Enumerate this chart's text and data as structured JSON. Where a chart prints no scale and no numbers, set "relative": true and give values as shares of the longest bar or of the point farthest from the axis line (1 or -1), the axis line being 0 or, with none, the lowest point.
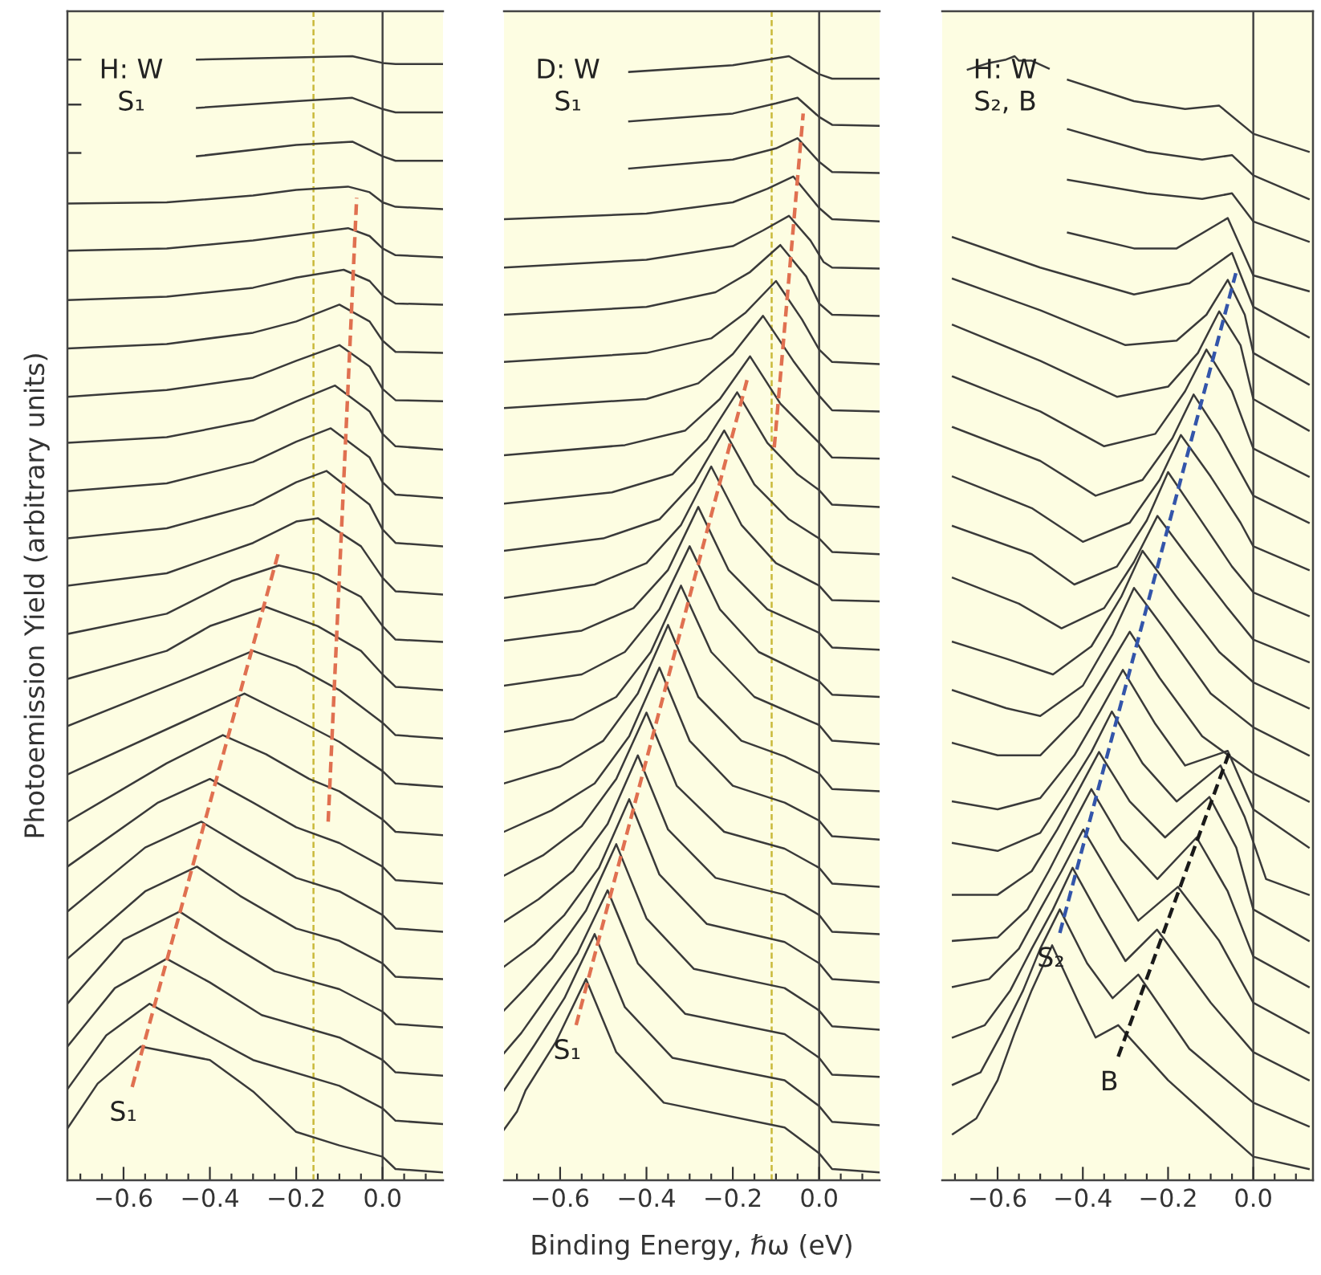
{
  "chart_data": [
    {
      "type": "line",
      "relative": true,
      "ylabel": "Photoemission Yield (arbitrary units)",
      "xlim": [
        -0.73,
        0.14
      ],
      "xticks": [
        {
          "value": -0.7,
          "label": null
        },
        {
          "value": -0.65,
          "label": null
        },
        {
          "value": -0.6,
          "label": "−0.6"
        },
        {
          "value": -0.55,
          "label": null
        },
        {
          "value": -0.5,
          "label": null
        },
        {
          "value": -0.45,
          "label": null
        },
        {
          "value": -0.4,
          "label": "−0.4"
        },
        {
          "value": -0.35,
          "label": null
        },
        {
          "value": -0.3,
          "label": null
        },
        {
          "value": -0.25,
          "label": null
        },
        {
          "value": -0.2,
          "label": "−0.2"
        },
        {
          "value": -0.15,
          "label": null
        },
        {
          "value": -0.1,
          "label": null
        },
        {
          "value": -0.05,
          "label": null
        },
        {
          "value": 0,
          "label": "0.0"
        },
        {
          "value": 0.05,
          "label": null
        },
        {
          "value": 0.1,
          "label": null
        }
      ],
      "annotations": [
        "H: W\nS₁",
        "S₁"
      ],
      "ref_lines": [
        {
          "axis": "x",
          "value": -0.16,
          "color": "#c9b93a",
          "line_style": "dashed"
        },
        {
          "axis": "x",
          "value": 0,
          "color": "#444444",
          "line_style": "solid"
        }
      ],
      "series": [
        {
          "color": "#3a3a3a",
          "x": [
            -0.73,
            -0.7,
            -0.6,
            -0.43,
            -0.2,
            -0.07,
            0,
            0.03,
            0.14
          ],
          "values": [
            0.997,
            0.997,
            null,
            0.997,
            0.999,
            1.0,
            0.994,
            0.993,
            0.993
          ]
        },
        {
          "color": "#3a3a3a",
          "x": [
            -0.73,
            -0.7,
            -0.6,
            -0.43,
            -0.2,
            -0.07,
            0,
            0.03,
            0.14
          ],
          "values": [
            0.957,
            0.957,
            null,
            0.954,
            0.96,
            0.963,
            0.953,
            0.95,
            0.95
          ]
        },
        {
          "color": "#3a3a3a",
          "x": [
            -0.73,
            -0.7,
            -0.6,
            -0.43,
            -0.2,
            -0.07,
            0,
            0.03,
            0.14
          ],
          "values": [
            0.914,
            0.914,
            null,
            0.911,
            0.921,
            0.924,
            0.911,
            0.907,
            0.907
          ]
        },
        {
          "color": "#3a3a3a",
          "x": [
            -0.73,
            -0.5,
            -0.3,
            -0.2,
            -0.08,
            -0.03,
            0,
            0.03,
            0.14
          ],
          "values": [
            0.869,
            0.87,
            0.876,
            0.881,
            0.884,
            0.879,
            0.87,
            0.866,
            0.864
          ]
        },
        {
          "color": "#3a3a3a",
          "x": [
            -0.73,
            -0.5,
            -0.3,
            -0.2,
            -0.08,
            -0.03,
            0,
            0.03,
            0.14
          ],
          "values": [
            0.827,
            0.829,
            0.836,
            0.841,
            0.847,
            0.84,
            0.829,
            0.823,
            0.821
          ]
        },
        {
          "color": "#3a3a3a",
          "x": [
            -0.73,
            -0.5,
            -0.3,
            -0.2,
            -0.09,
            -0.03,
            0,
            0.03,
            0.14
          ],
          "values": [
            0.783,
            0.786,
            0.794,
            0.803,
            0.81,
            0.8,
            0.787,
            0.78,
            0.779
          ]
        },
        {
          "color": "#3a3a3a",
          "x": [
            -0.73,
            -0.5,
            -0.3,
            -0.2,
            -0.1,
            -0.03,
            0,
            0.03,
            0.14
          ],
          "values": [
            0.74,
            0.744,
            0.754,
            0.764,
            0.779,
            0.764,
            0.747,
            0.737,
            0.736
          ]
        },
        {
          "color": "#3a3a3a",
          "x": [
            -0.73,
            -0.5,
            -0.3,
            -0.2,
            -0.1,
            -0.03,
            0,
            0.03,
            0.14
          ],
          "values": [
            0.697,
            0.703,
            0.714,
            0.729,
            0.743,
            0.724,
            0.704,
            0.694,
            0.693
          ]
        },
        {
          "color": "#3a3a3a",
          "x": [
            -0.73,
            -0.5,
            -0.3,
            -0.2,
            -0.11,
            -0.03,
            0,
            0.03,
            0.14
          ],
          "values": [
            0.656,
            0.661,
            0.676,
            0.693,
            0.707,
            0.684,
            0.664,
            0.653,
            0.65
          ]
        },
        {
          "color": "#3a3a3a",
          "x": [
            -0.73,
            -0.5,
            -0.3,
            -0.2,
            -0.12,
            -0.03,
            0,
            0.03,
            0.14
          ],
          "values": [
            0.613,
            0.62,
            0.639,
            0.657,
            0.669,
            0.643,
            0.621,
            0.61,
            0.607
          ]
        },
        {
          "color": "#3a3a3a",
          "x": [
            -0.73,
            -0.5,
            -0.3,
            -0.2,
            -0.13,
            -0.03,
            0,
            0.03,
            0.14
          ],
          "values": [
            0.571,
            0.58,
            0.601,
            0.621,
            0.631,
            0.601,
            0.579,
            0.567,
            0.564
          ]
        },
        {
          "color": "#3a3a3a",
          "x": [
            -0.73,
            -0.5,
            -0.3,
            -0.2,
            -0.15,
            -0.05,
            0,
            0.03,
            0.14
          ],
          "values": [
            0.529,
            0.54,
            0.567,
            0.586,
            0.589,
            0.564,
            0.536,
            0.524,
            0.521
          ]
        },
        {
          "color": "#3a3a3a",
          "x": [
            -0.73,
            -0.5,
            -0.35,
            -0.24,
            -0.15,
            -0.05,
            0,
            0.03,
            0.14
          ],
          "values": [
            0.486,
            0.504,
            0.533,
            0.547,
            0.539,
            0.519,
            0.493,
            0.481,
            0.479
          ]
        },
        {
          "color": "#3a3a3a",
          "x": [
            -0.73,
            -0.5,
            -0.4,
            -0.27,
            -0.15,
            -0.05,
            0,
            0.03,
            0.14
          ],
          "values": [
            0.446,
            0.471,
            0.493,
            0.51,
            0.493,
            0.471,
            0.45,
            0.439,
            0.436
          ]
        },
        {
          "color": "#3a3a3a",
          "x": [
            -0.73,
            -0.45,
            -0.3,
            -0.2,
            -0.1,
            0,
            0.03,
            0.14
          ],
          "values": [
            0.404,
            0.447,
            0.471,
            0.457,
            0.436,
            0.407,
            0.396,
            0.393
          ]
        },
        {
          "color": "#3a3a3a",
          "x": [
            -0.73,
            -0.45,
            -0.32,
            -0.2,
            -0.1,
            0,
            0.03,
            0.14
          ],
          "values": [
            0.361,
            0.41,
            0.433,
            0.41,
            0.39,
            0.364,
            0.353,
            0.35
          ]
        },
        {
          "color": "#3a3a3a",
          "x": [
            -0.73,
            -0.5,
            -0.37,
            -0.27,
            -0.17,
            -0.1,
            0,
            0.03,
            0.14
          ],
          "values": [
            0.319,
            0.371,
            0.396,
            0.379,
            0.357,
            0.346,
            0.321,
            0.31,
            0.307
          ]
        },
        {
          "color": "#3a3a3a",
          "x": [
            -0.73,
            -0.52,
            -0.4,
            -0.3,
            -0.2,
            -0.1,
            0,
            0.03,
            0.14
          ],
          "values": [
            0.279,
            0.336,
            0.357,
            0.336,
            0.314,
            0.3,
            0.279,
            0.267,
            0.264
          ]
        },
        {
          "color": "#3a3a3a",
          "x": [
            -0.73,
            -0.55,
            -0.42,
            -0.32,
            -0.2,
            -0.1,
            0,
            0.03,
            0.14
          ],
          "values": [
            0.239,
            0.296,
            0.319,
            0.296,
            0.269,
            0.257,
            0.236,
            0.224,
            0.221
          ]
        },
        {
          "color": "#3a3a3a",
          "x": [
            -0.73,
            -0.55,
            -0.43,
            -0.33,
            -0.2,
            -0.1,
            0,
            0.03,
            0.14
          ],
          "values": [
            0.197,
            0.257,
            0.279,
            0.253,
            0.224,
            0.213,
            0.193,
            0.181,
            0.179
          ]
        },
        {
          "color": "#3a3a3a",
          "x": [
            -0.73,
            -0.6,
            -0.47,
            -0.37,
            -0.25,
            -0.1,
            0,
            0.03,
            0.14
          ],
          "values": [
            0.157,
            0.214,
            0.239,
            0.214,
            0.186,
            0.17,
            0.15,
            0.139,
            0.136
          ]
        },
        {
          "color": "#3a3a3a",
          "x": [
            -0.73,
            -0.62,
            -0.5,
            -0.4,
            -0.28,
            -0.1,
            0,
            0.03,
            0.14
          ],
          "values": [
            0.119,
            0.171,
            0.197,
            0.176,
            0.147,
            0.127,
            0.107,
            0.096,
            0.093
          ]
        },
        {
          "color": "#3a3a3a",
          "x": [
            -0.73,
            -0.64,
            -0.54,
            -0.44,
            -0.3,
            -0.1,
            0,
            0.03,
            0.14
          ],
          "values": [
            0.081,
            0.129,
            0.157,
            0.136,
            0.107,
            0.084,
            0.064,
            0.053,
            0.05
          ]
        },
        {
          "color": "#3a3a3a",
          "x": [
            -0.73,
            -0.66,
            -0.56,
            -0.4,
            -0.3,
            -0.2,
            -0.1,
            0,
            0.03,
            0.14
          ],
          "values": [
            0.046,
            0.086,
            0.119,
            0.107,
            0.079,
            0.043,
            0.031,
            0.021,
            0.01,
            0.007
          ]
        },
        {
          "color": "#e07050",
          "line_style": "dashed",
          "x": [
            -0.58,
            -0.24
          ],
          "values": [
            0.083,
            0.56
          ]
        },
        {
          "color": "#e07050",
          "line_style": "dashed",
          "x": [
            -0.126,
            -0.06
          ],
          "values": [
            0.319,
            0.874
          ]
        }
      ]
    },
    {
      "type": "line",
      "relative": true,
      "xlabel": "Binding Energy, ℏω (eV)",
      "xlim": [
        -0.73,
        0.14
      ],
      "xticks": [
        {
          "value": -0.7,
          "label": null
        },
        {
          "value": -0.65,
          "label": null
        },
        {
          "value": -0.6,
          "label": "−0.6"
        },
        {
          "value": -0.55,
          "label": null
        },
        {
          "value": -0.5,
          "label": null
        },
        {
          "value": -0.45,
          "label": null
        },
        {
          "value": -0.4,
          "label": "−0.4"
        },
        {
          "value": -0.35,
          "label": null
        },
        {
          "value": -0.3,
          "label": null
        },
        {
          "value": -0.25,
          "label": null
        },
        {
          "value": -0.2,
          "label": "−0.2"
        },
        {
          "value": -0.15,
          "label": null
        },
        {
          "value": -0.1,
          "label": null
        },
        {
          "value": -0.05,
          "label": null
        },
        {
          "value": 0,
          "label": "0.0"
        },
        {
          "value": 0.05,
          "label": null
        },
        {
          "value": 0.1,
          "label": null
        }
      ],
      "annotations": [
        "D: W\nS₁",
        "S₁"
      ],
      "ref_lines": [
        {
          "axis": "x",
          "value": -0.11,
          "color": "#c9b93a",
          "line_style": "dashed"
        },
        {
          "axis": "x",
          "value": 0,
          "color": "#444444",
          "line_style": "solid"
        }
      ],
      "series": [
        {
          "color": "#3a3a3a",
          "x": [
            -0.44,
            -0.2,
            -0.07,
            0,
            0.03,
            0.14
          ],
          "values": [
            0.986,
            0.992,
            1.0,
            0.984,
            0.98,
            0.98
          ]
        },
        {
          "color": "#3a3a3a",
          "x": [
            -0.44,
            -0.2,
            -0.1,
            -0.05,
            0,
            0.03,
            0.14
          ],
          "values": [
            0.942,
            0.949,
            0.958,
            0.963,
            0.946,
            0.939,
            0.938
          ]
        },
        {
          "color": "#3a3a3a",
          "x": [
            -0.44,
            -0.2,
            -0.1,
            -0.05,
            0,
            0.03,
            0.14
          ],
          "values": [
            0.9,
            0.908,
            0.918,
            0.927,
            0.906,
            0.897,
            0.896
          ]
        },
        {
          "color": "#3a3a3a",
          "x": [
            -0.73,
            -0.4,
            -0.2,
            -0.12,
            -0.06,
            0,
            0.03,
            0.14
          ],
          "values": [
            0.855,
            0.86,
            0.87,
            0.882,
            0.893,
            0.865,
            0.855,
            0.853
          ]
        },
        {
          "color": "#3a3a3a",
          "x": [
            -0.73,
            -0.4,
            -0.2,
            -0.13,
            -0.07,
            -0.02,
            0.01,
            0.03,
            0.14
          ],
          "values": [
            0.812,
            0.819,
            0.831,
            0.845,
            0.858,
            0.836,
            0.817,
            0.812,
            0.811
          ]
        },
        {
          "color": "#3a3a3a",
          "x": [
            -0.73,
            -0.4,
            -0.24,
            -0.16,
            -0.09,
            -0.03,
            0,
            0.03,
            0.14
          ],
          "values": [
            0.77,
            0.777,
            0.79,
            0.808,
            0.832,
            0.804,
            0.78,
            0.77,
            0.769
          ]
        },
        {
          "color": "#3a3a3a",
          "x": [
            -0.73,
            -0.4,
            -0.25,
            -0.17,
            -0.1,
            -0.04,
            0,
            0.03,
            0.14
          ],
          "values": [
            0.728,
            0.736,
            0.749,
            0.772,
            0.8,
            0.766,
            0.739,
            0.728,
            0.726
          ]
        },
        {
          "color": "#3a3a3a",
          "x": [
            -0.73,
            -0.4,
            -0.28,
            -0.2,
            -0.13,
            -0.06,
            0,
            0.03,
            0.14
          ],
          "values": [
            0.687,
            0.695,
            0.709,
            0.735,
            0.769,
            0.729,
            0.698,
            0.685,
            0.684
          ]
        },
        {
          "color": "#3a3a3a",
          "x": [
            -0.73,
            -0.45,
            -0.31,
            -0.23,
            -0.16,
            -0.09,
            0,
            0.03,
            0.14
          ],
          "values": [
            0.645,
            0.654,
            0.667,
            0.695,
            0.733,
            0.691,
            0.656,
            0.643,
            0.642
          ]
        },
        {
          "color": "#3a3a3a",
          "x": [
            -0.73,
            -0.48,
            -0.34,
            -0.26,
            -0.19,
            -0.12,
            -0.05,
            0,
            0.03,
            0.14
          ],
          "values": [
            0.602,
            0.612,
            0.628,
            0.659,
            0.701,
            0.656,
            0.628,
            0.614,
            0.601,
            0.599
          ]
        },
        {
          "color": "#3a3a3a",
          "x": [
            -0.73,
            -0.5,
            -0.37,
            -0.29,
            -0.22,
            -0.15,
            -0.07,
            0,
            0.03,
            0.14
          ],
          "values": [
            0.56,
            0.571,
            0.588,
            0.621,
            0.667,
            0.619,
            0.588,
            0.571,
            0.559,
            0.557
          ]
        },
        {
          "color": "#3a3a3a",
          "x": [
            -0.73,
            -0.52,
            -0.4,
            -0.32,
            -0.25,
            -0.18,
            -0.1,
            0,
            0.03,
            0.14
          ],
          "values": [
            0.518,
            0.53,
            0.549,
            0.583,
            0.635,
            0.583,
            0.549,
            0.529,
            0.516,
            0.515
          ]
        },
        {
          "color": "#3a3a3a",
          "x": [
            -0.73,
            -0.55,
            -0.43,
            -0.35,
            -0.28,
            -0.21,
            -0.12,
            0,
            0.03,
            0.14
          ],
          "values": [
            0.48,
            0.489,
            0.509,
            0.543,
            0.599,
            0.543,
            0.508,
            0.487,
            0.474,
            0.472
          ]
        },
        {
          "color": "#3a3a3a",
          "x": [
            -0.73,
            -0.55,
            -0.45,
            -0.37,
            -0.3,
            -0.23,
            -0.14,
            0,
            0.03,
            0.14
          ],
          "values": [
            0.44,
            0.45,
            0.47,
            0.508,
            0.564,
            0.508,
            0.47,
            0.444,
            0.432,
            0.43
          ]
        },
        {
          "color": "#3a3a3a",
          "x": [
            -0.73,
            -0.57,
            -0.47,
            -0.39,
            -0.32,
            -0.25,
            -0.15,
            0,
            0.03,
            0.14
          ],
          "values": [
            0.399,
            0.41,
            0.43,
            0.47,
            0.529,
            0.47,
            0.43,
            0.405,
            0.391,
            0.388
          ]
        },
        {
          "color": "#3a3a3a",
          "x": [
            -0.73,
            -0.6,
            -0.5,
            -0.42,
            -0.35,
            -0.28,
            -0.18,
            -0.08,
            0,
            0.03,
            0.14
          ],
          "values": [
            0.353,
            0.368,
            0.391,
            0.433,
            0.494,
            0.43,
            0.391,
            0.377,
            0.362,
            0.348,
            0.346
          ]
        },
        {
          "color": "#3a3a3a",
          "x": [
            -0.73,
            -0.62,
            -0.52,
            -0.44,
            -0.37,
            -0.3,
            -0.2,
            -0.08,
            0,
            0.03,
            0.14
          ],
          "values": [
            0.31,
            0.329,
            0.353,
            0.395,
            0.456,
            0.391,
            0.351,
            0.336,
            0.32,
            0.306,
            0.303
          ]
        },
        {
          "color": "#3a3a3a",
          "x": [
            -0.73,
            -0.64,
            -0.55,
            -0.47,
            -0.4,
            -0.33,
            -0.22,
            -0.08,
            0,
            0.03,
            0.14
          ],
          "values": [
            0.271,
            0.289,
            0.315,
            0.357,
            0.416,
            0.351,
            0.31,
            0.295,
            0.278,
            0.264,
            0.261
          ]
        },
        {
          "color": "#3a3a3a",
          "x": [
            -0.73,
            -0.65,
            -0.57,
            -0.49,
            -0.42,
            -0.35,
            -0.24,
            -0.08,
            0,
            0.03,
            0.14
          ],
          "values": [
            0.23,
            0.25,
            0.275,
            0.317,
            0.378,
            0.312,
            0.269,
            0.254,
            0.236,
            0.221,
            0.219
          ]
        },
        {
          "color": "#3a3a3a",
          "x": [
            -0.73,
            -0.66,
            -0.59,
            -0.51,
            -0.44,
            -0.37,
            -0.26,
            -0.08,
            0,
            0.03,
            0.14
          ],
          "values": [
            0.19,
            0.21,
            0.236,
            0.278,
            0.339,
            0.272,
            0.228,
            0.212,
            0.193,
            0.179,
            0.176
          ]
        },
        {
          "color": "#3a3a3a",
          "x": [
            -0.73,
            -0.68,
            -0.62,
            -0.54,
            -0.47,
            -0.4,
            -0.29,
            -0.08,
            0,
            0.03,
            0.14
          ],
          "values": [
            0.151,
            0.171,
            0.197,
            0.24,
            0.299,
            0.233,
            0.188,
            0.171,
            0.151,
            0.137,
            0.134
          ]
        },
        {
          "color": "#3a3a3a",
          "x": [
            -0.73,
            -0.69,
            -0.64,
            -0.56,
            -0.49,
            -0.42,
            -0.31,
            -0.08,
            0,
            0.03,
            0.14
          ],
          "values": [
            0.113,
            0.131,
            0.158,
            0.202,
            0.258,
            0.193,
            0.148,
            0.13,
            0.109,
            0.094,
            0.092
          ]
        },
        {
          "color": "#3a3a3a",
          "x": [
            -0.73,
            -0.7,
            -0.66,
            -0.59,
            -0.52,
            -0.45,
            -0.34,
            -0.08,
            0,
            0.03,
            0.14
          ],
          "values": [
            0.08,
            0.097,
            0.12,
            0.162,
            0.219,
            0.154,
            0.109,
            0.089,
            0.066,
            0.052,
            0.049
          ]
        },
        {
          "color": "#3a3a3a",
          "x": [
            -0.73,
            -0.7,
            -0.68,
            -0.61,
            -0.54,
            -0.47,
            -0.36,
            -0.08,
            0,
            0.03,
            0.14
          ],
          "values": [
            0.045,
            0.061,
            0.08,
            0.123,
            0.179,
            0.114,
            0.069,
            0.047,
            0.024,
            0.01,
            0.007
          ]
        },
        {
          "color": "#e07050",
          "line_style": "dashed",
          "x": [
            -0.563,
            -0.167
          ],
          "values": [
            0.138,
            0.712
          ]
        },
        {
          "color": "#e07050",
          "line_style": "dashed",
          "x": [
            -0.104,
            -0.037
          ],
          "values": [
            0.652,
            0.949
          ]
        }
      ]
    },
    {
      "type": "line",
      "relative": true,
      "xlim": [
        -0.73,
        0.14
      ],
      "xticks": [
        {
          "value": -0.7,
          "label": null
        },
        {
          "value": -0.65,
          "label": null
        },
        {
          "value": -0.6,
          "label": "−0.6"
        },
        {
          "value": -0.55,
          "label": null
        },
        {
          "value": -0.5,
          "label": null
        },
        {
          "value": -0.45,
          "label": null
        },
        {
          "value": -0.4,
          "label": "−0.4"
        },
        {
          "value": -0.35,
          "label": null
        },
        {
          "value": -0.3,
          "label": null
        },
        {
          "value": -0.25,
          "label": null
        },
        {
          "value": -0.2,
          "label": "−0.2"
        },
        {
          "value": -0.15,
          "label": null
        },
        {
          "value": -0.1,
          "label": null
        },
        {
          "value": -0.05,
          "label": null
        },
        {
          "value": 0,
          "label": "0.0"
        },
        {
          "value": 0.05,
          "label": null
        },
        {
          "value": 0.1,
          "label": null
        }
      ],
      "annotations": [
        "H: W\nS₂, B",
        "S₂",
        "B"
      ],
      "ref_lines": [
        {
          "axis": "x",
          "value": 0,
          "color": "#444444",
          "line_style": "solid"
        }
      ],
      "series": [
        {
          "color": "#3a3a3a",
          "x": [
            -0.67,
            -0.62,
            -0.58,
            -0.56,
            -0.55,
            -0.52,
            -0.48
          ],
          "values": [
            0.988,
            0.994,
            0.997,
            1.0,
            0.996,
            0.996,
            0.989
          ]
        },
        {
          "color": "#3a3a3a",
          "x": [
            -0.435,
            -0.28,
            -0.16,
            -0.08,
            0,
            0.13
          ],
          "values": [
            0.979,
            0.96,
            0.953,
            0.956,
            0.931,
            0.915
          ]
        },
        {
          "color": "#3a3a3a",
          "x": [
            -0.435,
            -0.25,
            -0.12,
            -0.05,
            0,
            0.13
          ],
          "values": [
            0.935,
            0.915,
            0.908,
            0.912,
            0.894,
            0.873
          ]
        },
        {
          "color": "#3a3a3a",
          "x": [
            -0.435,
            -0.25,
            -0.12,
            -0.05,
            0,
            0.13
          ],
          "values": [
            0.89,
            0.878,
            0.873,
            0.878,
            0.853,
            0.835
          ]
        },
        {
          "color": "#3a3a3a",
          "x": [
            -0.435,
            -0.28,
            -0.18,
            -0.06,
            0,
            0.13
          ],
          "values": [
            0.843,
            0.829,
            0.829,
            0.856,
            0.805,
            0.791
          ]
        },
        {
          "color": "#3a3a3a",
          "x": [
            -0.705,
            -0.5,
            -0.28,
            -0.15,
            -0.05,
            0,
            0.13
          ],
          "values": [
            0.839,
            0.812,
            0.788,
            0.798,
            0.825,
            0.777,
            0.75
          ]
        },
        {
          "color": "#3a3a3a",
          "x": [
            -0.705,
            -0.5,
            -0.3,
            -0.18,
            -0.11,
            -0.06,
            -0.02,
            0,
            0.13
          ],
          "values": [
            0.802,
            0.774,
            0.743,
            0.747,
            0.77,
            0.801,
            0.77,
            0.736,
            0.708
          ]
        },
        {
          "color": "#3a3a3a",
          "x": [
            -0.705,
            -0.5,
            -0.32,
            -0.2,
            -0.13,
            -0.08,
            -0.03,
            0,
            0.13
          ],
          "values": [
            0.761,
            0.729,
            0.697,
            0.706,
            0.736,
            0.773,
            0.743,
            0.695,
            0.667
          ]
        },
        {
          "color": "#3a3a3a",
          "x": [
            -0.705,
            -0.5,
            -0.35,
            -0.23,
            -0.16,
            -0.11,
            -0.05,
            0,
            0.13
          ],
          "values": [
            0.715,
            0.684,
            0.653,
            0.664,
            0.702,
            0.739,
            0.702,
            0.651,
            0.626
          ]
        },
        {
          "color": "#3a3a3a",
          "x": [
            -0.705,
            -0.5,
            -0.37,
            -0.26,
            -0.19,
            -0.14,
            -0.08,
            0,
            0.13
          ],
          "values": [
            0.67,
            0.64,
            0.609,
            0.623,
            0.66,
            0.699,
            0.664,
            0.609,
            0.585
          ]
        },
        {
          "color": "#3a3a3a",
          "x": [
            -0.705,
            -0.52,
            -0.4,
            -0.29,
            -0.22,
            -0.17,
            -0.1,
            -0.03,
            0,
            0.13
          ],
          "values": [
            0.626,
            0.598,
            0.568,
            0.585,
            0.623,
            0.663,
            0.626,
            0.585,
            0.564,
            0.543
          ]
        },
        {
          "color": "#3a3a3a",
          "x": [
            -0.705,
            -0.52,
            -0.42,
            -0.32,
            -0.25,
            -0.2,
            -0.13,
            -0.05,
            0,
            0.13
          ],
          "values": [
            0.582,
            0.557,
            0.53,
            0.546,
            0.587,
            0.63,
            0.591,
            0.546,
            0.523,
            0.502
          ]
        },
        {
          "color": "#3a3a3a",
          "x": [
            -0.705,
            -0.55,
            -0.45,
            -0.35,
            -0.28,
            -0.225,
            -0.15,
            -0.06,
            0,
            0.13
          ],
          "values": [
            0.536,
            0.513,
            0.491,
            0.509,
            0.55,
            0.591,
            0.553,
            0.509,
            0.481,
            0.461
          ]
        },
        {
          "color": "#3a3a3a",
          "x": [
            -0.705,
            -0.58,
            -0.47,
            -0.38,
            -0.31,
            -0.26,
            -0.18,
            -0.08,
            0,
            0.13
          ],
          "values": [
            0.479,
            0.464,
            0.45,
            0.475,
            0.519,
            0.56,
            0.519,
            0.47,
            0.443,
            0.42
          ]
        },
        {
          "color": "#3a3a3a",
          "x": [
            -0.705,
            -0.58,
            -0.5,
            -0.4,
            -0.33,
            -0.28,
            -0.2,
            -0.1,
            0,
            0.13
          ],
          "values": [
            0.436,
            0.42,
            0.413,
            0.44,
            0.486,
            0.527,
            0.486,
            0.433,
            0.403,
            0.378
          ]
        },
        {
          "color": "#3a3a3a",
          "x": [
            -0.705,
            -0.6,
            -0.5,
            -0.41,
            -0.35,
            -0.29,
            -0.22,
            -0.12,
            0,
            0.13
          ],
          "values": [
            0.389,
            0.378,
            0.378,
            0.413,
            0.45,
            0.488,
            0.447,
            0.395,
            0.362,
            0.337
          ]
        },
        {
          "color": "#3a3a3a",
          "x": [
            -0.705,
            -0.6,
            -0.5,
            -0.42,
            -0.36,
            -0.306,
            -0.23,
            -0.16,
            -0.06,
            0,
            0.13
          ],
          "values": [
            0.337,
            0.33,
            0.34,
            0.378,
            0.417,
            0.454,
            0.406,
            0.369,
            0.382,
            0.33,
            0.296
          ]
        },
        {
          "color": "#3a3a3a",
          "x": [
            -0.705,
            -0.6,
            -0.5,
            -0.44,
            -0.38,
            -0.332,
            -0.26,
            -0.18,
            -0.077,
            -0.02,
            0.03,
            0.13
          ],
          "values": [
            0.3,
            0.293,
            0.309,
            0.344,
            0.381,
            0.417,
            0.371,
            0.337,
            0.369,
            0.323,
            0.268,
            0.254
          ]
        },
        {
          "color": "#3a3a3a",
          "x": [
            -0.705,
            -0.6,
            -0.52,
            -0.46,
            -0.41,
            -0.362,
            -0.29,
            -0.207,
            -0.103,
            -0.04,
            0,
            0.13
          ],
          "values": [
            0.254,
            0.254,
            0.275,
            0.312,
            0.347,
            0.381,
            0.337,
            0.305,
            0.341,
            0.296,
            0.241,
            0.213
          ]
        },
        {
          "color": "#3a3a3a",
          "x": [
            -0.705,
            -0.6,
            -0.53,
            -0.48,
            -0.43,
            -0.38,
            -0.31,
            -0.225,
            -0.133,
            -0.06,
            0,
            0.13
          ],
          "values": [
            0.213,
            0.216,
            0.241,
            0.275,
            0.312,
            0.348,
            0.303,
            0.268,
            0.305,
            0.257,
            0.199,
            0.172
          ]
        },
        {
          "color": "#3a3a3a",
          "x": [
            -0.705,
            -0.62,
            -0.55,
            -0.5,
            -0.45,
            -0.399,
            -0.33,
            -0.27,
            -0.177,
            -0.08,
            0,
            0.13
          ],
          "values": [
            0.172,
            0.179,
            0.206,
            0.241,
            0.275,
            0.312,
            0.268,
            0.231,
            0.261,
            0.213,
            0.158,
            0.131
          ]
        },
        {
          "color": "#3a3a3a",
          "x": [
            -0.705,
            -0.63,
            -0.57,
            -0.52,
            -0.47,
            -0.424,
            -0.36,
            -0.3,
            -0.226,
            -0.1,
            0,
            0.13
          ],
          "values": [
            0.127,
            0.138,
            0.169,
            0.206,
            0.241,
            0.278,
            0.234,
            0.195,
            0.223,
            0.158,
            0.114,
            0.089
          ]
        },
        {
          "color": "#3a3a3a",
          "x": [
            -0.705,
            -0.64,
            -0.59,
            -0.54,
            -0.5,
            -0.454,
            -0.39,
            -0.33,
            -0.27,
            -0.15,
            0,
            0.13
          ],
          "values": [
            0.085,
            0.096,
            0.131,
            0.169,
            0.206,
            0.241,
            0.193,
            0.162,
            0.183,
            0.117,
            0.069,
            0.048
          ]
        },
        {
          "color": "#3a3a3a",
          "x": [
            -0.705,
            -0.65,
            -0.6,
            -0.56,
            -0.52,
            -0.472,
            -0.41,
            -0.37,
            -0.317,
            -0.2,
            -0.08,
            0,
            0.13
          ],
          "values": [
            0.041,
            0.055,
            0.089,
            0.131,
            0.169,
            0.209,
            0.158,
            0.127,
            0.138,
            0.089,
            0.048,
            0.021,
            0.01
          ]
        },
        {
          "color": "#3355aa",
          "line_style": "dashed",
          "x": [
            -0.454,
            -0.041
          ],
          "values": [
            0.22,
            0.807
          ]
        },
        {
          "color": "#1a1a1a",
          "line_style": "dashed",
          "x": [
            -0.317,
            -0.055
          ],
          "values": [
            0.11,
            0.382
          ]
        }
      ]
    }
  ]
}
